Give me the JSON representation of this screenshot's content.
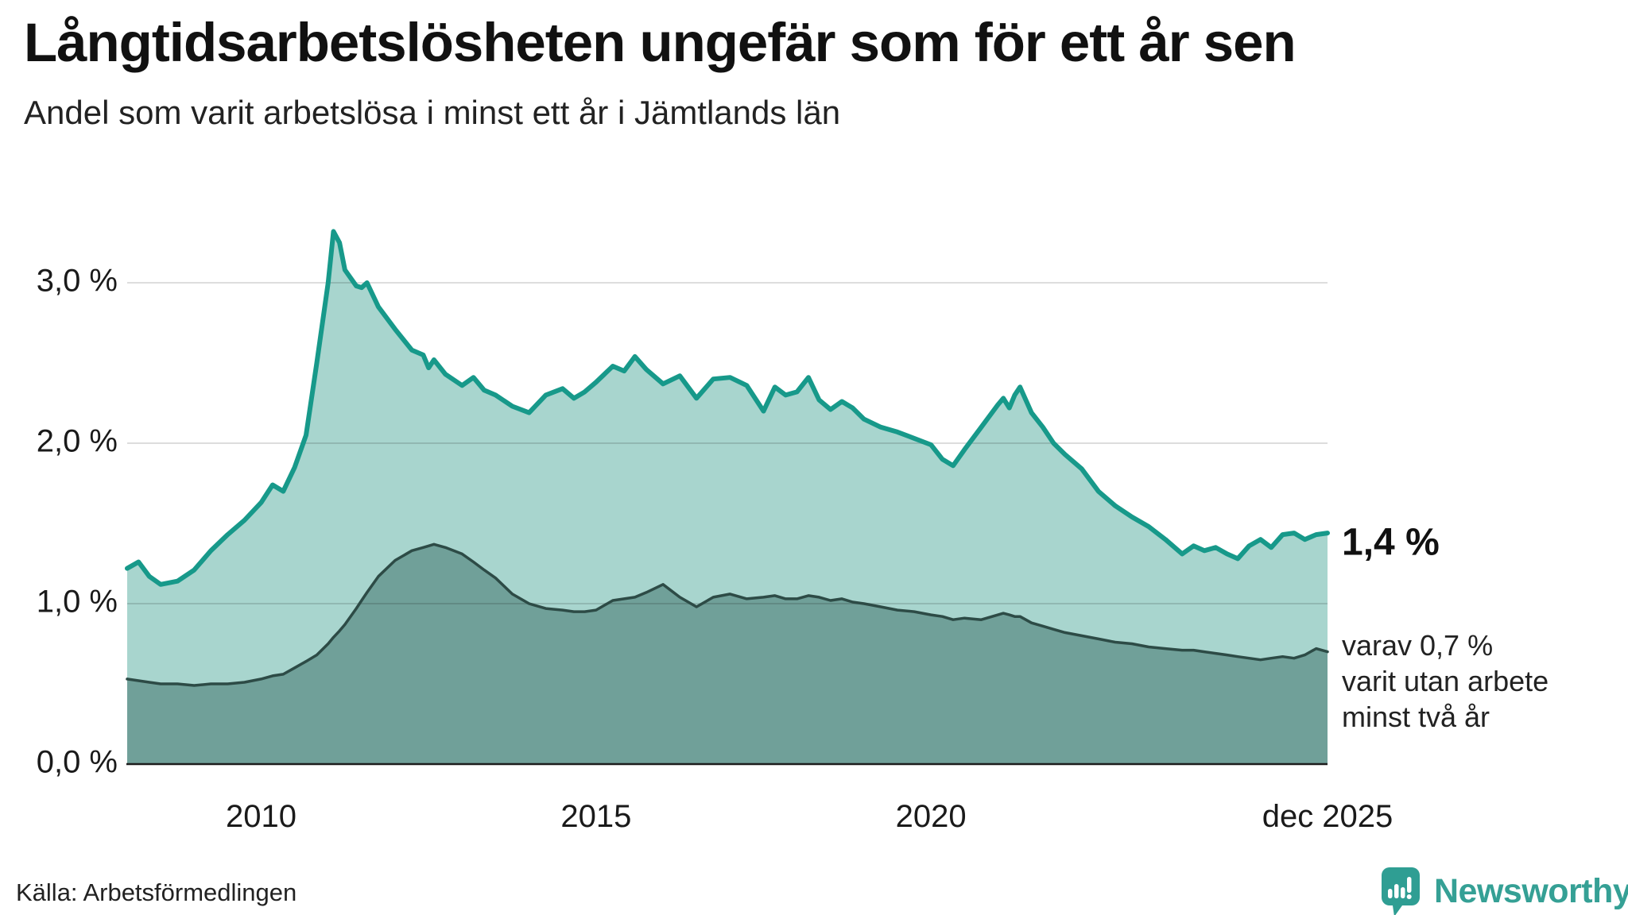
{
  "header": {
    "title": "Långtidsarbetslösheten ungefär som för ett år sen",
    "subtitle": "Andel som varit arbetslösa i minst ett år i Jämtlands län"
  },
  "annotations": {
    "latest_value": "1,4 %",
    "note": "varav 0,7 %\nvarit utan arbete\nminst två år"
  },
  "footer": {
    "source": "Källa: Arbetsförmedlingen",
    "brand": "Newsworthy",
    "brand_color": "#35a095"
  },
  "chart_data": {
    "type": "area",
    "title": "Långtidsarbetslösheten ungefär som för ett år sen",
    "subtitle": "Andel som varit arbetslösa i minst ett år i Jämtlands län",
    "xlabel": "",
    "ylabel": "",
    "x_unit": "decimal_year",
    "ylim": [
      0,
      3.55
    ],
    "xlim": [
      2008.0,
      2025.92
    ],
    "grid": "horizontal",
    "legend_position": "none",
    "colors": {
      "gridline": "#dcdcdc",
      "baseline": "#1c1c1c"
    },
    "x": [
      2008.0,
      2008.17,
      2008.33,
      2008.5,
      2008.75,
      2009.0,
      2009.25,
      2009.5,
      2009.75,
      2010.0,
      2010.17,
      2010.33,
      2010.5,
      2010.67,
      2010.83,
      2011.0,
      2011.08,
      2011.17,
      2011.25,
      2011.42,
      2011.5,
      2011.58,
      2011.75,
      2012.0,
      2012.25,
      2012.42,
      2012.5,
      2012.58,
      2012.75,
      2013.0,
      2013.17,
      2013.33,
      2013.5,
      2013.75,
      2014.0,
      2014.25,
      2014.5,
      2014.67,
      2014.83,
      2015.0,
      2015.25,
      2015.42,
      2015.58,
      2015.75,
      2016.0,
      2016.25,
      2016.5,
      2016.75,
      2017.0,
      2017.25,
      2017.5,
      2017.67,
      2017.83,
      2018.0,
      2018.17,
      2018.33,
      2018.5,
      2018.67,
      2018.83,
      2019.0,
      2019.25,
      2019.5,
      2019.75,
      2020.0,
      2020.17,
      2020.33,
      2020.5,
      2020.75,
      2021.0,
      2021.08,
      2021.17,
      2021.25,
      2021.33,
      2021.5,
      2021.67,
      2021.83,
      2022.0,
      2022.25,
      2022.5,
      2022.75,
      2023.0,
      2023.25,
      2023.5,
      2023.75,
      2023.92,
      2024.08,
      2024.25,
      2024.42,
      2024.58,
      2024.75,
      2024.92,
      2025.08,
      2025.25,
      2025.42,
      2025.58,
      2025.75,
      2025.92
    ],
    "series": [
      {
        "name": "Andel arbetslösa minst ett år",
        "line_color": "#17998a",
        "fill_color": "#a8d5ce",
        "line_width": 6,
        "values": [
          1.22,
          1.26,
          1.17,
          1.12,
          1.14,
          1.21,
          1.33,
          1.43,
          1.52,
          1.63,
          1.74,
          1.7,
          1.85,
          2.05,
          2.5,
          3.0,
          3.32,
          3.25,
          3.08,
          2.98,
          2.97,
          3.0,
          2.85,
          2.71,
          2.58,
          2.55,
          2.47,
          2.52,
          2.43,
          2.36,
          2.41,
          2.33,
          2.3,
          2.23,
          2.19,
          2.3,
          2.34,
          2.28,
          2.32,
          2.38,
          2.48,
          2.45,
          2.54,
          2.46,
          2.37,
          2.42,
          2.28,
          2.4,
          2.41,
          2.36,
          2.2,
          2.35,
          2.3,
          2.32,
          2.41,
          2.27,
          2.21,
          2.26,
          2.22,
          2.15,
          2.1,
          2.07,
          2.03,
          1.99,
          1.9,
          1.86,
          1.96,
          2.1,
          2.24,
          2.28,
          2.22,
          2.3,
          2.35,
          2.19,
          2.1,
          2.0,
          1.93,
          1.84,
          1.7,
          1.61,
          1.54,
          1.48,
          1.4,
          1.31,
          1.36,
          1.33,
          1.35,
          1.31,
          1.28,
          1.36,
          1.4,
          1.35,
          1.43,
          1.44,
          1.4,
          1.43,
          1.44
        ]
      },
      {
        "name": "varav utan arbete minst två år",
        "line_color": "#2d4b46",
        "fill_color": "#70a099",
        "line_width": 3.5,
        "values": [
          0.53,
          0.52,
          0.51,
          0.5,
          0.5,
          0.49,
          0.5,
          0.5,
          0.51,
          0.53,
          0.55,
          0.56,
          0.6,
          0.64,
          0.68,
          0.75,
          0.79,
          0.83,
          0.87,
          0.97,
          1.02,
          1.07,
          1.17,
          1.27,
          1.33,
          1.35,
          1.36,
          1.37,
          1.35,
          1.31,
          1.26,
          1.21,
          1.16,
          1.06,
          1.0,
          0.97,
          0.96,
          0.95,
          0.95,
          0.96,
          1.02,
          1.03,
          1.04,
          1.07,
          1.12,
          1.04,
          0.98,
          1.04,
          1.06,
          1.03,
          1.04,
          1.05,
          1.03,
          1.03,
          1.05,
          1.04,
          1.02,
          1.03,
          1.01,
          1.0,
          0.98,
          0.96,
          0.95,
          0.93,
          0.92,
          0.9,
          0.91,
          0.9,
          0.93,
          0.94,
          0.93,
          0.92,
          0.92,
          0.88,
          0.86,
          0.84,
          0.82,
          0.8,
          0.78,
          0.76,
          0.75,
          0.73,
          0.72,
          0.71,
          0.71,
          0.7,
          0.69,
          0.68,
          0.67,
          0.66,
          0.65,
          0.66,
          0.67,
          0.66,
          0.68,
          0.72,
          0.7
        ]
      }
    ],
    "y_ticks": [
      {
        "v": 0,
        "label": "0,0 %"
      },
      {
        "v": 1,
        "label": "1,0 %"
      },
      {
        "v": 2,
        "label": "2,0 %"
      },
      {
        "v": 3,
        "label": "3,0 %"
      }
    ],
    "x_ticks": [
      {
        "t": 2010.0,
        "label": "2010"
      },
      {
        "t": 2015.0,
        "label": "2015"
      },
      {
        "t": 2020.0,
        "label": "2020"
      },
      {
        "t": 2025.92,
        "label": "dec 2025"
      }
    ]
  }
}
